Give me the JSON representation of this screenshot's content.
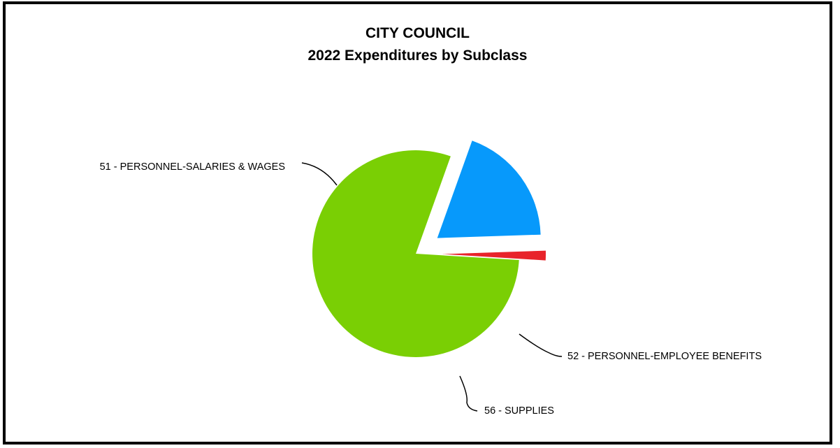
{
  "chart_data": {
    "type": "pie",
    "title": "CITY COUNCIL",
    "subtitle": "2022 Expenditures by Subclass",
    "slices": [
      {
        "label": "51 - PERSONNEL-SALARIES & WAGES",
        "value": 79.5,
        "color": "#7acf04"
      },
      {
        "label": "52 - PERSONNEL-EMPLOYEE BENEFITS",
        "value": 19.0,
        "color": "#0799fb"
      },
      {
        "label": "56 - SUPPLIES",
        "value": 1.5,
        "color": "#e8232a"
      }
    ],
    "legend": "none",
    "labels": "outside-with-leader-lines"
  }
}
